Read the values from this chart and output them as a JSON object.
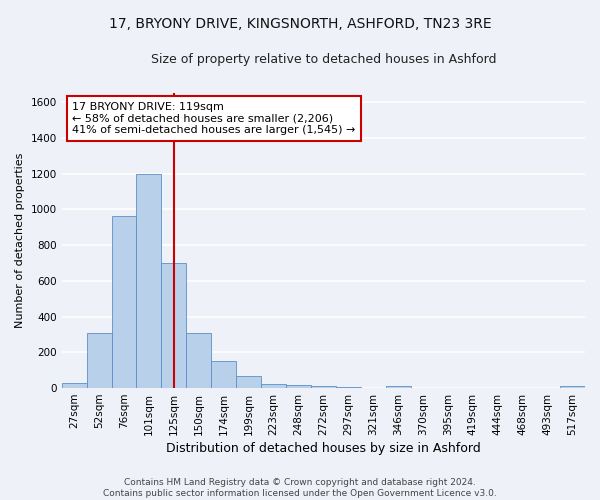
{
  "title1": "17, BRYONY DRIVE, KINGSNORTH, ASHFORD, TN23 3RE",
  "title2": "Size of property relative to detached houses in Ashford",
  "xlabel": "Distribution of detached houses by size in Ashford",
  "ylabel": "Number of detached properties",
  "categories": [
    "27sqm",
    "52sqm",
    "76sqm",
    "101sqm",
    "125sqm",
    "150sqm",
    "174sqm",
    "199sqm",
    "223sqm",
    "248sqm",
    "272sqm",
    "297sqm",
    "321sqm",
    "346sqm",
    "370sqm",
    "395sqm",
    "419sqm",
    "444sqm",
    "468sqm",
    "493sqm",
    "517sqm"
  ],
  "values": [
    30,
    310,
    960,
    1200,
    700,
    310,
    150,
    65,
    25,
    15,
    10,
    5,
    0,
    10,
    0,
    0,
    0,
    0,
    0,
    0,
    10
  ],
  "bar_color": "#b8d0ea",
  "bar_edge_color": "#5b8fc9",
  "vline_index": 4,
  "vline_color": "#cc0000",
  "annotation_text": "17 BRYONY DRIVE: 119sqm\n← 58% of detached houses are smaller (2,206)\n41% of semi-detached houses are larger (1,545) →",
  "annotation_box_facecolor": "#ffffff",
  "annotation_box_edgecolor": "#cc0000",
  "ylim": [
    0,
    1650
  ],
  "yticks": [
    0,
    200,
    400,
    600,
    800,
    1000,
    1200,
    1400,
    1600
  ],
  "footnote": "Contains HM Land Registry data © Crown copyright and database right 2024.\nContains public sector information licensed under the Open Government Licence v3.0.",
  "background_color": "#eef2f8",
  "grid_color": "#ffffff",
  "title1_fontsize": 10,
  "title2_fontsize": 9,
  "xlabel_fontsize": 9,
  "ylabel_fontsize": 8,
  "tick_fontsize": 7.5,
  "annotation_fontsize": 8,
  "footnote_fontsize": 6.5
}
